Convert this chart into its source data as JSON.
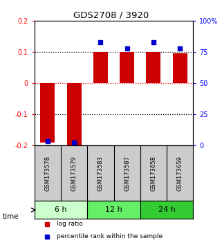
{
  "title": "GDS2708 / 3920",
  "samples": [
    "GSM173578",
    "GSM173579",
    "GSM173583",
    "GSM173587",
    "GSM173658",
    "GSM173659"
  ],
  "log_ratio": [
    -0.19,
    -0.2,
    0.1,
    0.1,
    0.101,
    0.095
  ],
  "percentile_rank": [
    3.5,
    2.5,
    83.0,
    78.0,
    83.0,
    78.0
  ],
  "groups": [
    {
      "label": "6 h",
      "indices": [
        0,
        1
      ],
      "color": "#ccffcc"
    },
    {
      "label": "12 h",
      "indices": [
        2,
        3
      ],
      "color": "#66ee66"
    },
    {
      "label": "24 h",
      "indices": [
        4,
        5
      ],
      "color": "#33cc33"
    }
  ],
  "bar_color": "#cc0000",
  "dot_color": "#0000cc",
  "left_ylim": [
    -0.2,
    0.2
  ],
  "right_ylim": [
    0,
    100
  ],
  "left_yticks": [
    -0.2,
    -0.1,
    0.0,
    0.1,
    0.2
  ],
  "left_yticklabels": [
    "-0.2",
    "-0.1",
    "0",
    "0.1",
    "0.2"
  ],
  "right_yticks": [
    0,
    25,
    50,
    75,
    100
  ],
  "right_yticklabels": [
    "0",
    "25",
    "50",
    "75",
    "100%"
  ],
  "hline_black_dotted": [
    0.1,
    -0.1
  ],
  "hline_red_dotted": 0.0,
  "sample_area_color": "#cccccc",
  "legend_items": [
    {
      "label": "log ratio",
      "color": "#cc0000"
    },
    {
      "label": "percentile rank within the sample",
      "color": "#0000cc"
    }
  ]
}
